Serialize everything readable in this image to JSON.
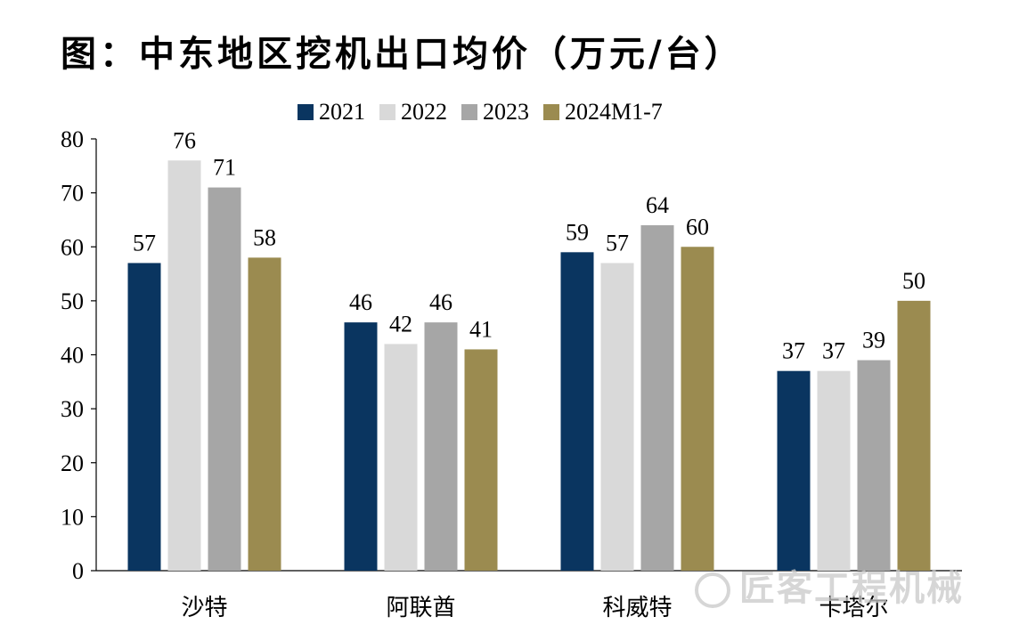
{
  "chart_data": {
    "type": "bar",
    "title": "图：中东地区挖机出口均价（万元/台）",
    "categories": [
      "沙特",
      "阿联酋",
      "科威特",
      "卡塔尔"
    ],
    "series": [
      {
        "name": "2021",
        "color": "#0a3560",
        "values": [
          57,
          46,
          59,
          37
        ],
        "value_labels": [
          "57",
          "46",
          "59",
          "37"
        ]
      },
      {
        "name": "2022",
        "color": "#d9d9d9",
        "values": [
          76,
          42,
          57,
          37
        ],
        "value_labels": [
          "76",
          "42",
          "57",
          "37"
        ]
      },
      {
        "name": "2023",
        "color": "#a6a6a6",
        "values": [
          71,
          46,
          64,
          39
        ],
        "value_labels": [
          "71",
          "46",
          "64",
          "39"
        ]
      },
      {
        "name": "2024M1-7",
        "color": "#9b8b50",
        "values": [
          58,
          41,
          60,
          50
        ],
        "value_labels": [
          "58",
          "41",
          "60",
          "50"
        ]
      }
    ],
    "ylim": [
      0,
      80
    ],
    "yticks": [
      "0",
      "10",
      "20",
      "30",
      "40",
      "50",
      "60",
      "70",
      "80"
    ],
    "legend_position": "top",
    "grid": false
  },
  "watermark": {
    "text": "匠客工程机械"
  }
}
